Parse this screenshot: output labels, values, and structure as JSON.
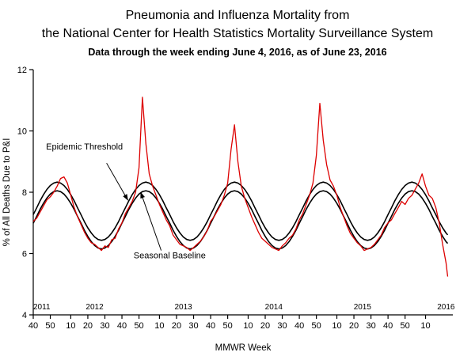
{
  "header": {
    "title_line1": "Pneumonia and Influenza Mortality from",
    "title_line2": "the National Center for Health Statistics Mortality Surveillance System",
    "subtitle": "Data through the week ending June 4, 2016, as of June 23, 2016"
  },
  "chart_data": {
    "type": "line",
    "title": "Pneumonia and Influenza Mortality from the National Center for Health Statistics Mortality Surveillance System",
    "xlabel": "MMWR Week",
    "ylabel": "% of All Deaths Due to P&I",
    "ylim": [
      4,
      12
    ],
    "yticks": [
      4,
      6,
      8,
      10,
      12
    ],
    "xlim": [
      0,
      246
    ],
    "x_unit": "weeks since 2011 MMWR week 40",
    "grid": false,
    "legend": "none (curves labeled by in-plot annotations)",
    "xticks": [
      {
        "t": 0,
        "label": "40"
      },
      {
        "t": 10,
        "label": "50"
      },
      {
        "t": 22,
        "label": "10"
      },
      {
        "t": 32,
        "label": "20"
      },
      {
        "t": 42,
        "label": "30"
      },
      {
        "t": 52,
        "label": "40"
      },
      {
        "t": 62,
        "label": "50"
      },
      {
        "t": 74,
        "label": "10"
      },
      {
        "t": 84,
        "label": "20"
      },
      {
        "t": 94,
        "label": "30"
      },
      {
        "t": 104,
        "label": "40"
      },
      {
        "t": 114,
        "label": "50"
      },
      {
        "t": 126,
        "label": "10"
      },
      {
        "t": 136,
        "label": "20"
      },
      {
        "t": 146,
        "label": "30"
      },
      {
        "t": 156,
        "label": "40"
      },
      {
        "t": 166,
        "label": "50"
      },
      {
        "t": 178,
        "label": "10"
      },
      {
        "t": 188,
        "label": "20"
      },
      {
        "t": 198,
        "label": "30"
      },
      {
        "t": 208,
        "label": "40"
      },
      {
        "t": 218,
        "label": "50"
      },
      {
        "t": 230,
        "label": "10"
      }
    ],
    "year_labels": [
      {
        "t": 5,
        "label": "2011"
      },
      {
        "t": 36,
        "label": "2012"
      },
      {
        "t": 88,
        "label": "2013"
      },
      {
        "t": 141,
        "label": "2014"
      },
      {
        "t": 193,
        "label": "2015"
      },
      {
        "t": 242,
        "label": "2016"
      }
    ],
    "x": [
      0,
      2,
      4,
      6,
      8,
      10,
      12,
      14,
      16,
      18,
      20,
      22,
      24,
      26,
      28,
      30,
      32,
      34,
      36,
      38,
      40,
      42,
      44,
      46,
      48,
      50,
      52,
      54,
      56,
      58,
      60,
      62,
      64,
      66,
      68,
      70,
      72,
      74,
      76,
      78,
      80,
      82,
      84,
      86,
      88,
      90,
      92,
      94,
      96,
      98,
      100,
      102,
      104,
      106,
      108,
      110,
      112,
      114,
      116,
      118,
      120,
      122,
      124,
      126,
      128,
      130,
      132,
      134,
      136,
      138,
      140,
      142,
      144,
      146,
      148,
      150,
      152,
      154,
      156,
      158,
      160,
      162,
      164,
      166,
      168,
      170,
      172,
      174,
      176,
      178,
      180,
      182,
      184,
      186,
      188,
      190,
      192,
      194,
      196,
      198,
      200,
      202,
      204,
      206,
      208,
      210,
      212,
      214,
      216,
      218,
      220,
      222,
      224,
      226,
      228,
      230,
      232,
      234,
      236,
      238,
      240,
      242,
      243
    ],
    "series": [
      {
        "id": "epidemic-threshold",
        "name": "Epidemic Threshold",
        "color": "#000000",
        "values": [
          7.27,
          7.49,
          7.72,
          7.92,
          8.09,
          8.22,
          8.3,
          8.33,
          8.3,
          8.22,
          8.09,
          7.92,
          7.72,
          7.49,
          7.27,
          7.04,
          6.84,
          6.67,
          6.54,
          6.46,
          6.43,
          6.46,
          6.54,
          6.67,
          6.84,
          7.04,
          7.27,
          7.49,
          7.72,
          7.92,
          8.09,
          8.22,
          8.3,
          8.33,
          8.3,
          8.22,
          8.09,
          7.92,
          7.72,
          7.49,
          7.27,
          7.04,
          6.84,
          6.67,
          6.54,
          6.46,
          6.43,
          6.46,
          6.54,
          6.67,
          6.84,
          7.04,
          7.27,
          7.49,
          7.72,
          7.92,
          8.09,
          8.22,
          8.3,
          8.33,
          8.3,
          8.22,
          8.09,
          7.92,
          7.72,
          7.49,
          7.27,
          7.04,
          6.84,
          6.67,
          6.54,
          6.46,
          6.43,
          6.46,
          6.54,
          6.67,
          6.84,
          7.04,
          7.27,
          7.49,
          7.72,
          7.92,
          8.09,
          8.22,
          8.3,
          8.33,
          8.3,
          8.22,
          8.09,
          7.92,
          7.72,
          7.49,
          7.27,
          7.04,
          6.84,
          6.67,
          6.54,
          6.46,
          6.43,
          6.46,
          6.54,
          6.67,
          6.84,
          7.04,
          7.27,
          7.49,
          7.72,
          7.92,
          8.09,
          8.22,
          8.3,
          8.33,
          8.3,
          8.22,
          8.09,
          7.92,
          7.72,
          7.49,
          7.27,
          7.04,
          6.84,
          6.67,
          6.61
        ]
      },
      {
        "id": "seasonal-baseline",
        "name": "Seasonal Baseline",
        "color": "#000000",
        "values": [
          6.99,
          7.21,
          7.44,
          7.64,
          7.81,
          7.94,
          8.02,
          8.05,
          8.02,
          7.94,
          7.81,
          7.64,
          7.44,
          7.21,
          6.99,
          6.76,
          6.56,
          6.39,
          6.26,
          6.18,
          6.15,
          6.18,
          6.26,
          6.39,
          6.56,
          6.76,
          6.99,
          7.21,
          7.44,
          7.64,
          7.81,
          7.94,
          8.02,
          8.05,
          8.02,
          7.94,
          7.81,
          7.64,
          7.44,
          7.21,
          6.99,
          6.76,
          6.56,
          6.39,
          6.26,
          6.18,
          6.15,
          6.18,
          6.26,
          6.39,
          6.56,
          6.76,
          6.99,
          7.21,
          7.44,
          7.64,
          7.81,
          7.94,
          8.02,
          8.05,
          8.02,
          7.94,
          7.81,
          7.64,
          7.44,
          7.21,
          6.99,
          6.76,
          6.56,
          6.39,
          6.26,
          6.18,
          6.15,
          6.18,
          6.26,
          6.39,
          6.56,
          6.76,
          6.99,
          7.21,
          7.44,
          7.64,
          7.81,
          7.94,
          8.02,
          8.05,
          8.02,
          7.94,
          7.81,
          7.64,
          7.44,
          7.21,
          6.99,
          6.76,
          6.56,
          6.39,
          6.26,
          6.18,
          6.15,
          6.18,
          6.26,
          6.39,
          6.56,
          6.76,
          6.99,
          7.21,
          7.44,
          7.64,
          7.81,
          7.94,
          8.02,
          8.05,
          8.02,
          7.94,
          7.81,
          7.64,
          7.44,
          7.21,
          6.99,
          6.76,
          6.56,
          6.39,
          6.33
        ]
      },
      {
        "id": "pi-mortality",
        "name": "Weekly % of all deaths due to P&I",
        "color": "#dd0000",
        "values": [
          7.05,
          7.15,
          7.35,
          7.55,
          7.75,
          7.85,
          8.0,
          8.2,
          8.45,
          8.5,
          8.3,
          7.9,
          7.5,
          7.2,
          6.95,
          6.7,
          6.5,
          6.35,
          6.3,
          6.2,
          6.1,
          6.25,
          6.2,
          6.45,
          6.5,
          6.8,
          7.0,
          7.3,
          7.5,
          7.7,
          8.0,
          8.8,
          11.1,
          9.6,
          8.6,
          8.2,
          7.9,
          7.6,
          7.35,
          7.1,
          6.9,
          6.6,
          6.45,
          6.3,
          6.25,
          6.2,
          6.1,
          6.2,
          6.3,
          6.4,
          6.55,
          6.75,
          7.05,
          7.2,
          7.4,
          7.6,
          7.9,
          8.3,
          9.4,
          10.2,
          9.0,
          8.2,
          7.8,
          7.5,
          7.2,
          6.95,
          6.7,
          6.5,
          6.4,
          6.3,
          6.2,
          6.15,
          6.1,
          6.25,
          6.35,
          6.5,
          6.6,
          6.8,
          7.1,
          7.3,
          7.6,
          7.9,
          8.3,
          9.2,
          10.9,
          9.7,
          8.9,
          8.4,
          8.2,
          7.9,
          7.5,
          7.2,
          6.9,
          6.65,
          6.5,
          6.35,
          6.25,
          6.1,
          6.15,
          6.2,
          6.3,
          6.45,
          6.6,
          6.85,
          7.0,
          7.1,
          7.3,
          7.5,
          7.7,
          7.6,
          7.8,
          7.9,
          8.1,
          8.3,
          8.6,
          8.2,
          7.9,
          7.8,
          7.5,
          7.0,
          6.3,
          5.7,
          5.25
        ]
      }
    ],
    "annotations": [
      {
        "id": "epidemic-threshold",
        "label": "Epidemic Threshold",
        "t": 30,
        "v": 9.4,
        "arrow": {
          "from": [
            43,
            8.95
          ],
          "to": [
            55.5,
            7.74
          ]
        }
      },
      {
        "id": "seasonal-baseline",
        "label": "Seasonal Baseline",
        "t": 80,
        "v": 5.85,
        "arrow": {
          "from": [
            75,
            6.1
          ],
          "to": [
            63,
            8.0
          ]
        }
      }
    ]
  }
}
